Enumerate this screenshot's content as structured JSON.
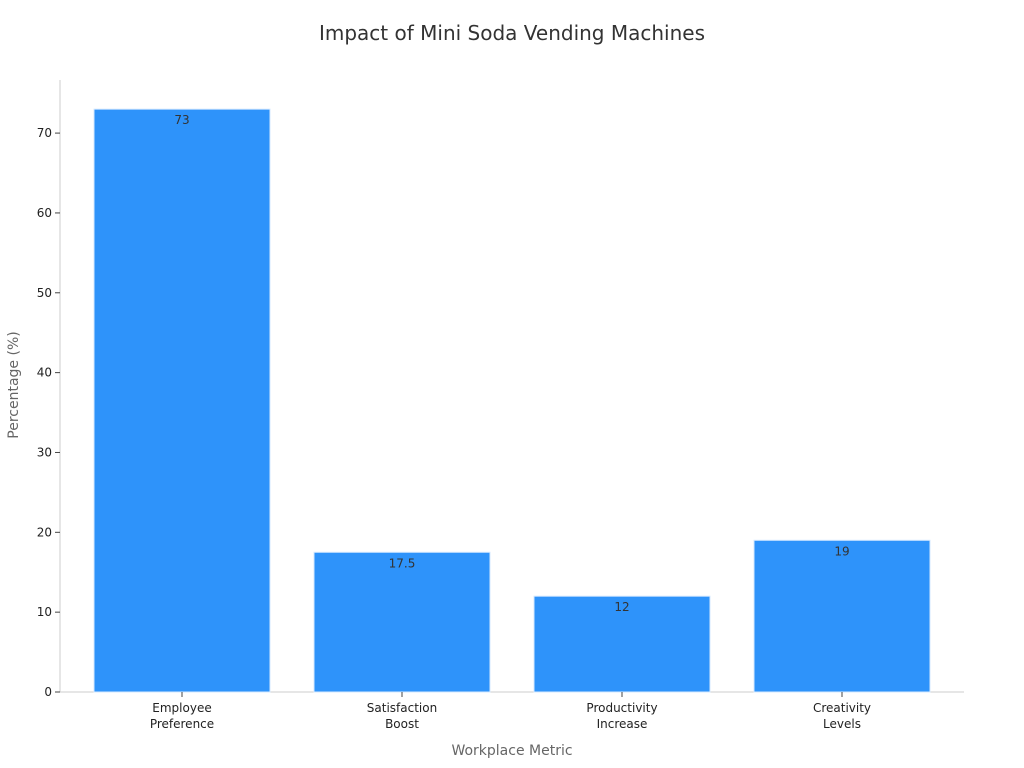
{
  "chart_data": {
    "type": "bar",
    "title": "Impact of Mini Soda Vending Machines",
    "xlabel": "Workplace Metric",
    "ylabel": "Percentage (%)",
    "categories": [
      [
        "Employee",
        "Preference"
      ],
      [
        "Satisfaction",
        "Boost"
      ],
      [
        "Productivity",
        "Increase"
      ],
      [
        "Creativity",
        "Levels"
      ]
    ],
    "values": [
      73,
      17.5,
      12,
      19
    ],
    "data_labels": [
      "73",
      "17.5",
      "12",
      "19"
    ],
    "yticks": [
      0,
      10,
      20,
      30,
      40,
      50,
      60,
      70
    ],
    "ylim": [
      0,
      76.65
    ],
    "grid": false,
    "legend": "none",
    "colors": {
      "bar": "#2e93fa",
      "bar_edge": "#d6e9ff",
      "axis": "#cccccc"
    }
  }
}
